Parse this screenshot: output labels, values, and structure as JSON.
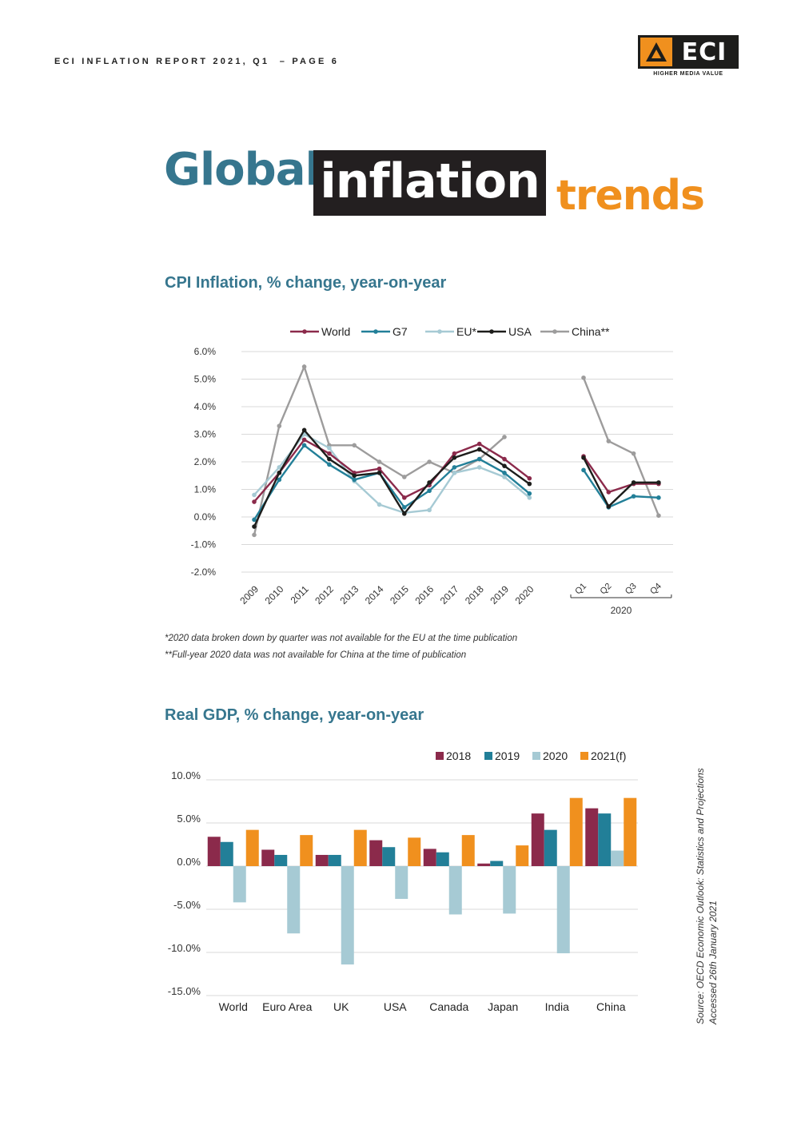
{
  "header": {
    "text": "ECI INFLATION REPORT 2021, Q1  – PAGE 6"
  },
  "logo": {
    "wordmark": "ECI",
    "tagline": "HIGHER MEDIA VALUE",
    "colors": {
      "orange": "#f0901e",
      "dark": "#1d1d1b"
    }
  },
  "title": {
    "word1": "Global",
    "word2": "inflation",
    "word3": "trends"
  },
  "cpi": {
    "title": "CPI Inflation, % change, year-on-year",
    "note1": "*2020 data broken down by quarter was not available for the EU at the time publication",
    "note2": "**Full-year 2020 data was not available for China at the time of publication"
  },
  "gdp": {
    "title": "Real GDP, % change, year-on-year"
  },
  "source": {
    "line1": "Source: OECD Economic Outlook: Statistics and Projections",
    "line2": "Accessed 26th January 2021"
  },
  "chart_data": [
    {
      "type": "line",
      "title": "CPI Inflation, % change, year-on-year",
      "y_ticks": [
        "6.0%",
        "5.0%",
        "4.0%",
        "3.0%",
        "2.0%",
        "1.0%",
        "0.0%",
        "-1.0%",
        "-2.0%"
      ],
      "ylim": [
        -2,
        6
      ],
      "grid": true,
      "legend_position": "top",
      "annual_x": [
        "2009",
        "2010",
        "2011",
        "2012",
        "2013",
        "2014",
        "2015",
        "2016",
        "2017",
        "2018",
        "2019",
        "2020"
      ],
      "quarter_x": [
        "Q1",
        "Q2",
        "Q3",
        "Q4"
      ],
      "quarter_group_label": "2020",
      "series": [
        {
          "name": "World",
          "color": "#8b2a4b",
          "annual": [
            0.55,
            1.6,
            2.8,
            2.3,
            1.6,
            1.75,
            0.7,
            1.15,
            2.3,
            2.65,
            2.1,
            1.4
          ],
          "quarterly": [
            2.2,
            0.9,
            1.2,
            1.2
          ]
        },
        {
          "name": "G7",
          "color": "#227f98",
          "annual": [
            -0.1,
            1.35,
            2.6,
            1.9,
            1.35,
            1.6,
            0.35,
            0.95,
            1.8,
            2.1,
            1.6,
            0.85
          ],
          "quarterly": [
            1.7,
            0.35,
            0.75,
            0.7
          ]
        },
        {
          "name": "EU*",
          "color": "#a6cad4",
          "annual": [
            0.8,
            1.8,
            3.0,
            2.5,
            1.3,
            0.45,
            0.15,
            0.25,
            1.6,
            1.8,
            1.45,
            0.7
          ],
          "quarterly": []
        },
        {
          "name": "USA",
          "color": "#1d1d1b",
          "annual": [
            -0.35,
            1.6,
            3.15,
            2.1,
            1.5,
            1.6,
            0.12,
            1.25,
            2.15,
            2.45,
            1.85,
            1.2
          ],
          "quarterly": [
            2.15,
            0.38,
            1.25,
            1.25
          ]
        },
        {
          "name": "China**",
          "color": "#9d9c9c",
          "annual": [
            -0.65,
            3.3,
            5.45,
            2.6,
            2.6,
            2.0,
            1.45,
            2.0,
            1.6,
            2.1,
            2.9,
            null
          ],
          "quarterly": [
            5.05,
            2.75,
            2.3,
            0.05
          ]
        }
      ]
    },
    {
      "type": "bar",
      "title": "Real GDP, % change, year-on-year",
      "categories": [
        "World",
        "Euro Area",
        "UK",
        "USA",
        "Canada",
        "Japan",
        "India",
        "China"
      ],
      "y_ticks": [
        "10.0%",
        "5.0%",
        "0.0%",
        "-5.0%",
        "-10.0%",
        "-15.0%"
      ],
      "ylim": [
        -15,
        10
      ],
      "grid": true,
      "legend_position": "top-right",
      "series": [
        {
          "name": "2018",
          "color": "#8b2a4b",
          "values": [
            3.4,
            1.9,
            1.3,
            3.0,
            2.0,
            0.3,
            6.1,
            6.7
          ]
        },
        {
          "name": "2019",
          "color": "#227f98",
          "values": [
            2.8,
            1.3,
            1.3,
            2.2,
            1.6,
            0.6,
            4.2,
            6.1
          ]
        },
        {
          "name": "2020",
          "color": "#a6cad4",
          "values": [
            -4.2,
            -7.8,
            -11.4,
            -3.8,
            -5.6,
            -5.5,
            -10.1,
            1.8
          ]
        },
        {
          "name": "2021(f)",
          "color": "#f0901e",
          "values": [
            4.2,
            3.6,
            4.2,
            3.3,
            3.6,
            2.4,
            7.9,
            7.9
          ]
        }
      ]
    }
  ]
}
